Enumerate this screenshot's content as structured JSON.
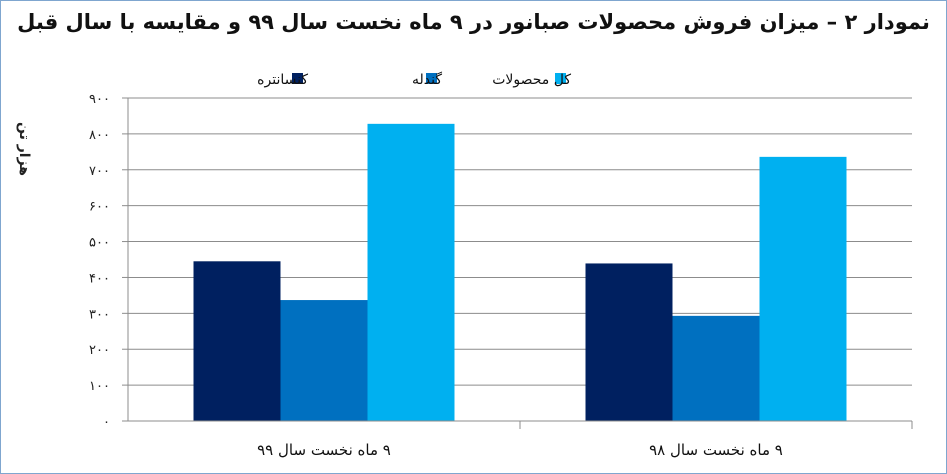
{
  "chart_data": {
    "type": "bar",
    "title": "نمودار ۲ – میزان فروش محصولات صبانور در ۹ ماه نخست سال ۹۹ و مقایسه با سال قبل",
    "xlabel": "",
    "ylabel": "هزار تن",
    "categories": [
      "۹ ماه نخست سال ۹۹",
      "۹ ماه نخست سال ۹۸"
    ],
    "series": [
      {
        "name": "کنسانتره",
        "color": "#002060",
        "values": [
          445,
          439
        ]
      },
      {
        "name": "گندله",
        "color": "#0070c0",
        "values": [
          337,
          293
        ]
      },
      {
        "name": "کل محصولات",
        "color": "#00b0f0",
        "values": [
          828,
          736
        ]
      }
    ],
    "ylim": [
      0,
      900
    ],
    "yticks": [
      0,
      100,
      200,
      300,
      400,
      500,
      600,
      700,
      800,
      900
    ],
    "ytick_labels": [
      "۰",
      "۱۰۰",
      "۲۰۰",
      "۳۰۰",
      "۴۰۰",
      "۵۰۰",
      "۶۰۰",
      "۷۰۰",
      "۸۰۰",
      "۹۰۰"
    ],
    "grid": true,
    "legend_position": "top"
  }
}
